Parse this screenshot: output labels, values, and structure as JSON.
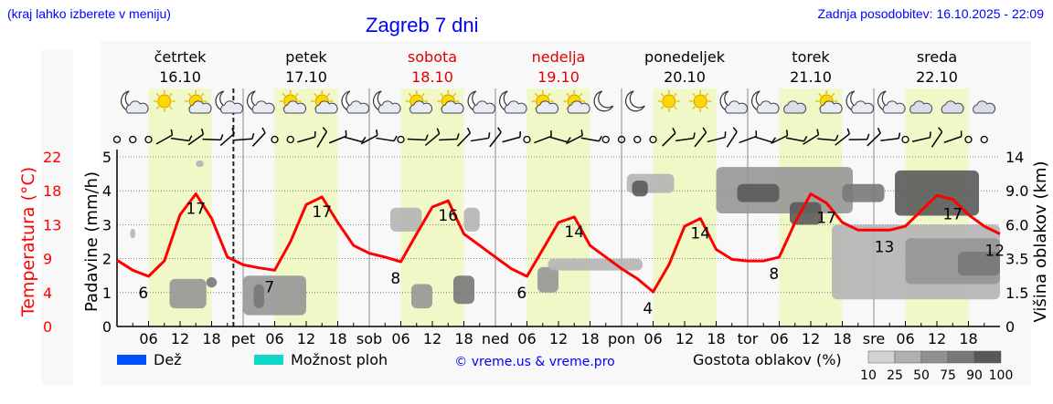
{
  "header": {
    "hint": "(kraj lahko izberete v meniju)",
    "title": "Zagreb 7 dni",
    "updated": "Zadnja posodobitev: 16.10.2025 - 22:09"
  },
  "colors": {
    "temperature": "#ff0000",
    "weekend": "#e00000",
    "daylight": "#f0f8c8",
    "rain": "#0050ff",
    "showers": "#10d8c8",
    "link": "#0000ff"
  },
  "legend": {
    "rain": "Dež",
    "showers": "Možnost ploh",
    "copyright": "© vreme.us & vreme.pro",
    "cloud_density": "Gostota oblakov (%)",
    "density_levels": [
      "10",
      "25",
      "50",
      "75",
      "90",
      "100"
    ]
  },
  "chart_data": {
    "type": "line",
    "days": [
      {
        "name": "četrtek",
        "date": "16.10",
        "weekend": false
      },
      {
        "name": "petek",
        "date": "17.10",
        "weekend": false
      },
      {
        "name": "sobota",
        "date": "18.10",
        "weekend": true
      },
      {
        "name": "nedelja",
        "date": "19.10",
        "weekend": true
      },
      {
        "name": "ponedeljek",
        "date": "20.10",
        "weekend": false
      },
      {
        "name": "torek",
        "date": "21.10",
        "weekend": false
      },
      {
        "name": "sreda",
        "date": "22.10",
        "weekend": false
      }
    ],
    "day_abbr": [
      "",
      "pet",
      "sob",
      "ned",
      "pon",
      "tor",
      "sre"
    ],
    "hour_ticks": [
      "06",
      "12",
      "18"
    ],
    "now_hour": 22.15,
    "left_axis": {
      "label": "Padavine (mm/h)",
      "ticks": [
        "0",
        "1",
        "2",
        "3",
        "4",
        "5"
      ],
      "range": [
        0,
        5
      ]
    },
    "temp_axis": {
      "label": "Temperatura (°C)",
      "ticks": [
        "0",
        "4",
        "9",
        "13",
        "18",
        "22"
      ],
      "range": [
        0,
        22
      ]
    },
    "right_axis": {
      "label": "Višina oblakov (km)",
      "ticks": [
        "0",
        "1.5",
        "3.5",
        "6.0",
        "9.0",
        "14"
      ]
    },
    "temperature_3h": [
      8.6,
      7.3,
      6.5,
      8.5,
      14.5,
      17.2,
      14,
      9.0,
      8.0,
      7.6,
      7.3,
      11,
      15.8,
      16.8,
      13.5,
      10.5,
      9.5,
      9.0,
      8.4,
      12,
      15.5,
      16.3,
      12,
      10.5,
      9.0,
      7.5,
      6.5,
      10,
      13.5,
      14.2,
      10.5,
      9.0,
      7.5,
      6.2,
      4.5,
      8,
      13,
      14.0,
      10,
      8.7,
      8.5,
      8.5,
      9.0,
      13.5,
      17.2,
      16,
      13.5,
      12.5,
      12.5,
      12.5,
      13,
      15,
      17.0,
      16.5,
      14.5,
      13.0,
      12
    ],
    "temperature_labels": [
      {
        "h": 5,
        "t": "6"
      },
      {
        "h": 15,
        "t": "17"
      },
      {
        "h": 29,
        "t": "7"
      },
      {
        "h": 39,
        "t": "17"
      },
      {
        "h": 53,
        "t": "8"
      },
      {
        "h": 63,
        "t": "16"
      },
      {
        "h": 77,
        "t": "6"
      },
      {
        "h": 87,
        "t": "14"
      },
      {
        "h": 101,
        "t": "4"
      },
      {
        "h": 111,
        "t": "14"
      },
      {
        "h": 125,
        "t": "8"
      },
      {
        "h": 135,
        "t": "17"
      },
      {
        "h": 146,
        "t": "13"
      },
      {
        "h": 159,
        "t": "17"
      },
      {
        "h": 167,
        "t": "12"
      }
    ],
    "precipitation_mm_h": [],
    "clouds": [
      {
        "h": [
          15,
          16.5
        ],
        "km": [
          12.5,
          13.5
        ],
        "d": 25
      },
      {
        "h": [
          2.5,
          3.5
        ],
        "km": [
          5,
          5.7
        ],
        "d": 25
      },
      {
        "h": [
          10,
          17
        ],
        "km": [
          0.8,
          2.3
        ],
        "d": 50
      },
      {
        "h": [
          17,
          19
        ],
        "km": [
          1.8,
          2.4
        ],
        "d": 75
      },
      {
        "h": [
          24,
          36
        ],
        "km": [
          0.5,
          2.5
        ],
        "d": 50
      },
      {
        "h": [
          26,
          28
        ],
        "km": [
          0.8,
          2
        ],
        "d": 75
      },
      {
        "h": [
          52,
          58
        ],
        "km": [
          5.5,
          7.5
        ],
        "d": 25
      },
      {
        "h": [
          66,
          69
        ],
        "km": [
          5.5,
          7.5
        ],
        "d": 25
      },
      {
        "h": [
          56,
          60
        ],
        "km": [
          0.8,
          2
        ],
        "d": 50
      },
      {
        "h": [
          64,
          68
        ],
        "km": [
          1,
          2.5
        ],
        "d": 75
      },
      {
        "h": [
          80,
          84
        ],
        "km": [
          1.5,
          3
        ],
        "d": 50
      },
      {
        "h": [
          82,
          100
        ],
        "km": [
          2.8,
          3.5
        ],
        "d": 25
      },
      {
        "h": [
          97,
          106
        ],
        "km": [
          8.8,
          11.5
        ],
        "d": 25
      },
      {
        "h": [
          98,
          101
        ],
        "km": [
          8.5,
          10.5
        ],
        "d": 90
      },
      {
        "h": [
          114,
          140
        ],
        "km": [
          7,
          12.5
        ],
        "d": 50
      },
      {
        "h": [
          118,
          126
        ],
        "km": [
          8,
          10
        ],
        "d": 90
      },
      {
        "h": [
          128,
          134
        ],
        "km": [
          6,
          8
        ],
        "d": 90
      },
      {
        "h": [
          138,
          146
        ],
        "km": [
          8,
          10
        ],
        "d": 75
      },
      {
        "h": [
          148,
          164
        ],
        "km": [
          6.8,
          12
        ],
        "d": 90
      },
      {
        "h": [
          136,
          168
        ],
        "km": [
          1.2,
          6
        ],
        "d": 25
      },
      {
        "h": [
          150,
          168
        ],
        "km": [
          2,
          5
        ],
        "d": 50
      },
      {
        "h": [
          160,
          168
        ],
        "km": [
          2.5,
          4
        ],
        "d": 75
      }
    ],
    "wind": [
      "c",
      "c",
      "c",
      "b",
      "b",
      "b",
      "b",
      "b",
      "b",
      "b",
      "c",
      "c",
      "b",
      "b",
      "b",
      "b",
      "b",
      "b",
      "c",
      "b",
      "b",
      "b",
      "b",
      "b",
      "b",
      "b",
      "c",
      "b",
      "b",
      "b",
      "b",
      "c",
      "c",
      "c",
      "c",
      "b",
      "b",
      "b",
      "b",
      "b",
      "b",
      "b",
      "b",
      "b",
      "b",
      "b",
      "b",
      "b",
      "b",
      "b",
      "c",
      "b",
      "b",
      "b",
      "c",
      "c"
    ],
    "weather_icons": [
      "moon-cloud",
      "sun",
      "sun-cloud",
      "moon-cloud",
      "moon-cloud",
      "sun-cloud",
      "sun-cloud",
      "moon-cloud",
      "moon-cloud",
      "sun-cloud",
      "sun-cloud",
      "moon-cloud",
      "moon-cloud",
      "sun-cloud",
      "sun-cloud",
      "moon",
      "moon",
      "sun",
      "sun",
      "moon-cloud",
      "moon-cloud",
      "cloud",
      "sun-cloud",
      "moon-cloud",
      "moon-cloud",
      "cloud",
      "cloud",
      "cloud"
    ]
  }
}
